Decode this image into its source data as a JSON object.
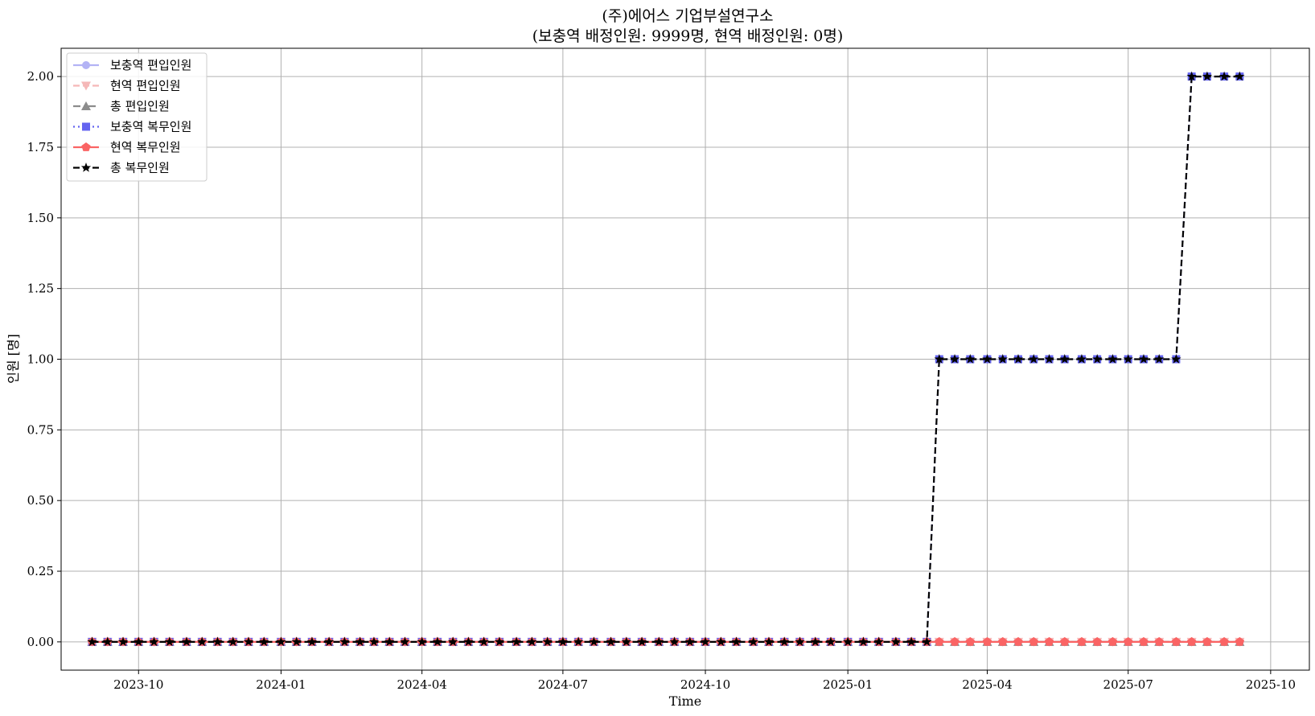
{
  "chart_data": {
    "type": "line",
    "title": "(주)에어스 기업부설연구소",
    "subtitle": "(보충역 배정인원: 9999명, 현역 배정인원: 0명)",
    "xlabel": "Time",
    "ylabel": "인원 [명]",
    "x_tick_labels": [
      "2023-10",
      "2024-01",
      "2024-04",
      "2024-07",
      "2024-10",
      "2025-01",
      "2025-04",
      "2025-07",
      "2025-10"
    ],
    "y_tick_labels": [
      "0.00",
      "0.25",
      "0.50",
      "0.75",
      "1.00",
      "1.25",
      "1.50",
      "1.75",
      "2.00"
    ],
    "ylim": [
      -0.1,
      2.1
    ],
    "grid": true,
    "legend_position": "top-left",
    "x": [
      "2023-09-01",
      "2023-09-11",
      "2023-09-21",
      "2023-10-01",
      "2023-10-11",
      "2023-10-21",
      "2023-11-01",
      "2023-11-11",
      "2023-11-21",
      "2023-12-01",
      "2023-12-11",
      "2023-12-21",
      "2024-01-01",
      "2024-01-11",
      "2024-01-21",
      "2024-02-01",
      "2024-02-11",
      "2024-02-21",
      "2024-03-01",
      "2024-03-11",
      "2024-03-21",
      "2024-04-01",
      "2024-04-11",
      "2024-04-21",
      "2024-05-01",
      "2024-05-11",
      "2024-05-21",
      "2024-06-01",
      "2024-06-11",
      "2024-06-21",
      "2024-07-01",
      "2024-07-11",
      "2024-07-21",
      "2024-08-01",
      "2024-08-11",
      "2024-08-21",
      "2024-09-01",
      "2024-09-11",
      "2024-09-21",
      "2024-10-01",
      "2024-10-11",
      "2024-10-21",
      "2024-11-01",
      "2024-11-11",
      "2024-11-21",
      "2024-12-01",
      "2024-12-11",
      "2024-12-21",
      "2025-01-01",
      "2025-01-11",
      "2025-01-21",
      "2025-02-01",
      "2025-02-11",
      "2025-02-21",
      "2025-03-01",
      "2025-03-11",
      "2025-03-21",
      "2025-04-01",
      "2025-04-11",
      "2025-04-21",
      "2025-05-01",
      "2025-05-11",
      "2025-05-21",
      "2025-06-01",
      "2025-06-11",
      "2025-06-21",
      "2025-07-01",
      "2025-07-11",
      "2025-07-21",
      "2025-08-01",
      "2025-08-11",
      "2025-08-21",
      "2025-09-01",
      "2025-09-11"
    ],
    "series": [
      {
        "name": "보충역 편입인원",
        "color": "#b3b3f5",
        "dash": "solid",
        "marker": "circle",
        "values": [
          0,
          0,
          0,
          0,
          0,
          0,
          0,
          0,
          0,
          0,
          0,
          0,
          0,
          0,
          0,
          0,
          0,
          0,
          0,
          0,
          0,
          0,
          0,
          0,
          0,
          0,
          0,
          0,
          0,
          0,
          0,
          0,
          0,
          0,
          0,
          0,
          0,
          0,
          0,
          0,
          0,
          0,
          0,
          0,
          0,
          0,
          0,
          0,
          0,
          0,
          0,
          0,
          0,
          0,
          0,
          0,
          0,
          0,
          0,
          0,
          0,
          0,
          0,
          0,
          0,
          0,
          0,
          0,
          0,
          0,
          0,
          0,
          0,
          0
        ]
      },
      {
        "name": "현역 편입인원",
        "color": "#f5b8b8",
        "dash": "dashed",
        "marker": "triangle-down",
        "values": [
          0,
          0,
          0,
          0,
          0,
          0,
          0,
          0,
          0,
          0,
          0,
          0,
          0,
          0,
          0,
          0,
          0,
          0,
          0,
          0,
          0,
          0,
          0,
          0,
          0,
          0,
          0,
          0,
          0,
          0,
          0,
          0,
          0,
          0,
          0,
          0,
          0,
          0,
          0,
          0,
          0,
          0,
          0,
          0,
          0,
          0,
          0,
          0,
          0,
          0,
          0,
          0,
          0,
          0,
          0,
          0,
          0,
          0,
          0,
          0,
          0,
          0,
          0,
          0,
          0,
          0,
          0,
          0,
          0,
          0,
          0,
          0,
          0,
          0
        ]
      },
      {
        "name": "총 편입인원",
        "color": "#8c8c8c",
        "dash": "dashdot",
        "marker": "triangle-up",
        "values": [
          0,
          0,
          0,
          0,
          0,
          0,
          0,
          0,
          0,
          0,
          0,
          0,
          0,
          0,
          0,
          0,
          0,
          0,
          0,
          0,
          0,
          0,
          0,
          0,
          0,
          0,
          0,
          0,
          0,
          0,
          0,
          0,
          0,
          0,
          0,
          0,
          0,
          0,
          0,
          0,
          0,
          0,
          0,
          0,
          0,
          0,
          0,
          0,
          0,
          0,
          0,
          0,
          0,
          0,
          0,
          0,
          0,
          0,
          0,
          0,
          0,
          0,
          0,
          0,
          0,
          0,
          0,
          0,
          0,
          0,
          0,
          0,
          0,
          0
        ]
      },
      {
        "name": "보충역 복무인원",
        "color": "#6464f0",
        "dash": "dotted",
        "marker": "square",
        "values": [
          0,
          0,
          0,
          0,
          0,
          0,
          0,
          0,
          0,
          0,
          0,
          0,
          0,
          0,
          0,
          0,
          0,
          0,
          0,
          0,
          0,
          0,
          0,
          0,
          0,
          0,
          0,
          0,
          0,
          0,
          0,
          0,
          0,
          0,
          0,
          0,
          0,
          0,
          0,
          0,
          0,
          0,
          0,
          0,
          0,
          0,
          0,
          0,
          0,
          0,
          0,
          0,
          0,
          0,
          1,
          1,
          1,
          1,
          1,
          1,
          1,
          1,
          1,
          1,
          1,
          1,
          1,
          1,
          1,
          1,
          2,
          2,
          2,
          2
        ]
      },
      {
        "name": "현역 복무인원",
        "color": "#fa6464",
        "dash": "solid",
        "marker": "pentagon",
        "values": [
          0,
          0,
          0,
          0,
          0,
          0,
          0,
          0,
          0,
          0,
          0,
          0,
          0,
          0,
          0,
          0,
          0,
          0,
          0,
          0,
          0,
          0,
          0,
          0,
          0,
          0,
          0,
          0,
          0,
          0,
          0,
          0,
          0,
          0,
          0,
          0,
          0,
          0,
          0,
          0,
          0,
          0,
          0,
          0,
          0,
          0,
          0,
          0,
          0,
          0,
          0,
          0,
          0,
          0,
          0,
          0,
          0,
          0,
          0,
          0,
          0,
          0,
          0,
          0,
          0,
          0,
          0,
          0,
          0,
          0,
          0,
          0,
          0,
          0
        ]
      },
      {
        "name": "총 복무인원",
        "color": "#000000",
        "dash": "dashed",
        "marker": "star",
        "values": [
          0,
          0,
          0,
          0,
          0,
          0,
          0,
          0,
          0,
          0,
          0,
          0,
          0,
          0,
          0,
          0,
          0,
          0,
          0,
          0,
          0,
          0,
          0,
          0,
          0,
          0,
          0,
          0,
          0,
          0,
          0,
          0,
          0,
          0,
          0,
          0,
          0,
          0,
          0,
          0,
          0,
          0,
          0,
          0,
          0,
          0,
          0,
          0,
          0,
          0,
          0,
          0,
          0,
          0,
          1,
          1,
          1,
          1,
          1,
          1,
          1,
          1,
          1,
          1,
          1,
          1,
          1,
          1,
          1,
          1,
          2,
          2,
          2,
          2
        ]
      }
    ]
  }
}
